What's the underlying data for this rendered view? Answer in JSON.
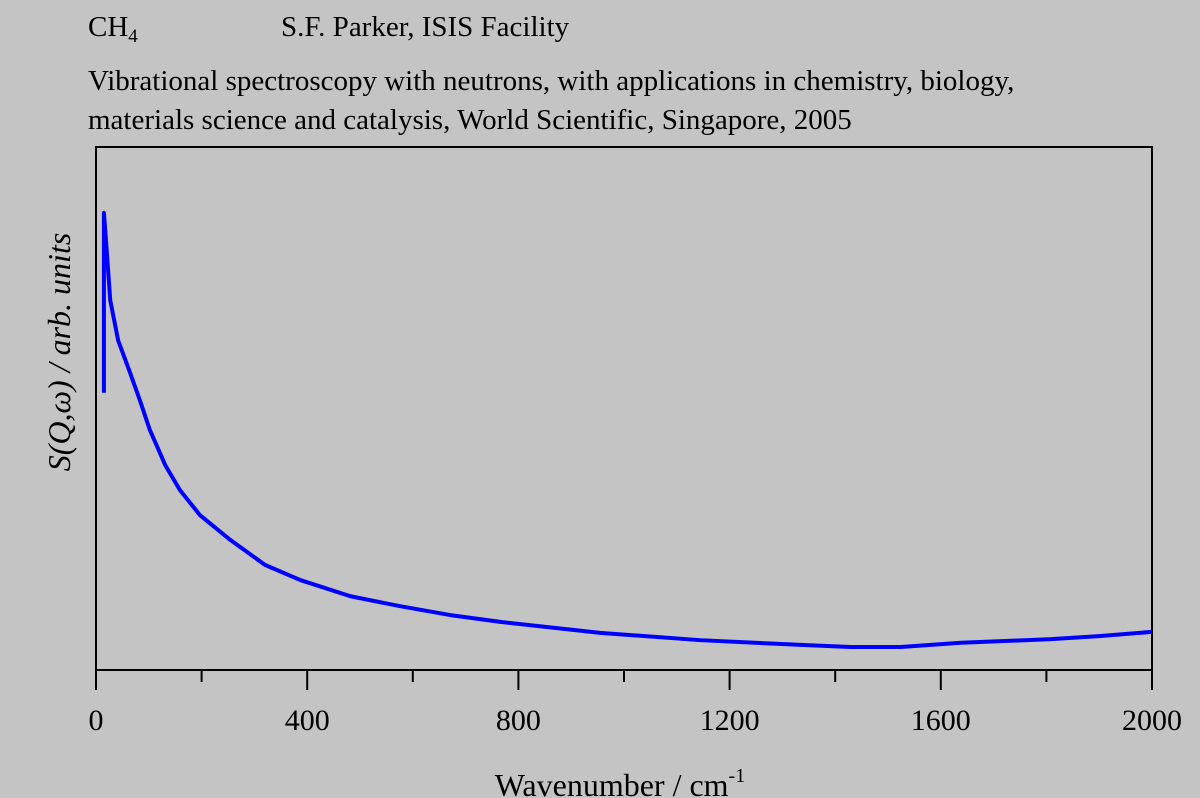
{
  "header": {
    "compound": "CH",
    "compound_sub": "4",
    "author": "S.F. Parker, ISIS Facility",
    "reference_line1": "Vibrational spectroscopy with neutrons, with applications in chemistry, biology,",
    "reference_line2": "materials science and catalysis, World Scientific, Singapore, 2005"
  },
  "chart_data": {
    "type": "line",
    "title": "CH4",
    "xlabel": "Wavenumber / cm",
    "xlabel_sup": "-1",
    "ylabel": "S(Q,ω) / arb. units",
    "xlim": [
      0,
      2000
    ],
    "ylim": [
      0,
      100
    ],
    "xticks": [
      0,
      400,
      800,
      1200,
      1600,
      2000
    ],
    "xminor": [
      200,
      600,
      1000,
      1400,
      1800
    ],
    "grid": false,
    "line_color": "#0000ff",
    "series": [
      {
        "name": "CH4",
        "x": [
          15,
          15,
          19,
          27,
          42,
          64,
          83,
          102,
          131,
          159,
          197,
          254,
          320,
          387,
          482,
          576,
          671,
          766,
          955,
          1145,
          1335,
          1429,
          1524,
          1638,
          1809,
          1903,
          2000
        ],
        "y": [
          53,
          87.4,
          82,
          70.7,
          63,
          57,
          51.6,
          45.9,
          39.2,
          34.4,
          29.6,
          24.9,
          20.1,
          17.2,
          14.1,
          12.2,
          10.5,
          9.2,
          7.1,
          5.7,
          4.8,
          4.4,
          4.4,
          5.2,
          5.9,
          6.5,
          7.3
        ]
      }
    ]
  }
}
